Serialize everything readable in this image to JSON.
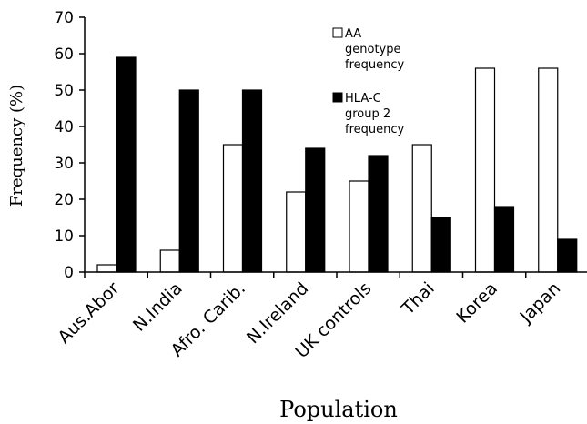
{
  "chart_data": {
    "type": "bar",
    "categories": [
      "Aus.Abor",
      "N.India",
      "Afro. Carib.",
      "N.Ireland",
      "UK controls",
      "Thai",
      "Korea",
      "Japan"
    ],
    "series": [
      {
        "name": "AA genotype frequency",
        "name_lines": [
          "AA",
          "genotype",
          "frequency"
        ],
        "color": "#ffffff",
        "values": [
          2,
          6,
          35,
          22,
          25,
          35,
          56,
          56
        ]
      },
      {
        "name": "HLA-C group 2 frequency",
        "name_lines": [
          "HLA-C",
          "group 2",
          "frequency"
        ],
        "color": "#000000",
        "values": [
          59,
          50,
          50,
          34,
          32,
          15,
          18,
          9
        ]
      }
    ],
    "xlabel": "Population",
    "ylabel": "Frequency (%)",
    "ylim": [
      0,
      70
    ],
    "yticks": [
      "0",
      "10",
      "20",
      "30",
      "40",
      "50",
      "60",
      "70"
    ],
    "grid": false,
    "legend": "top-right"
  }
}
